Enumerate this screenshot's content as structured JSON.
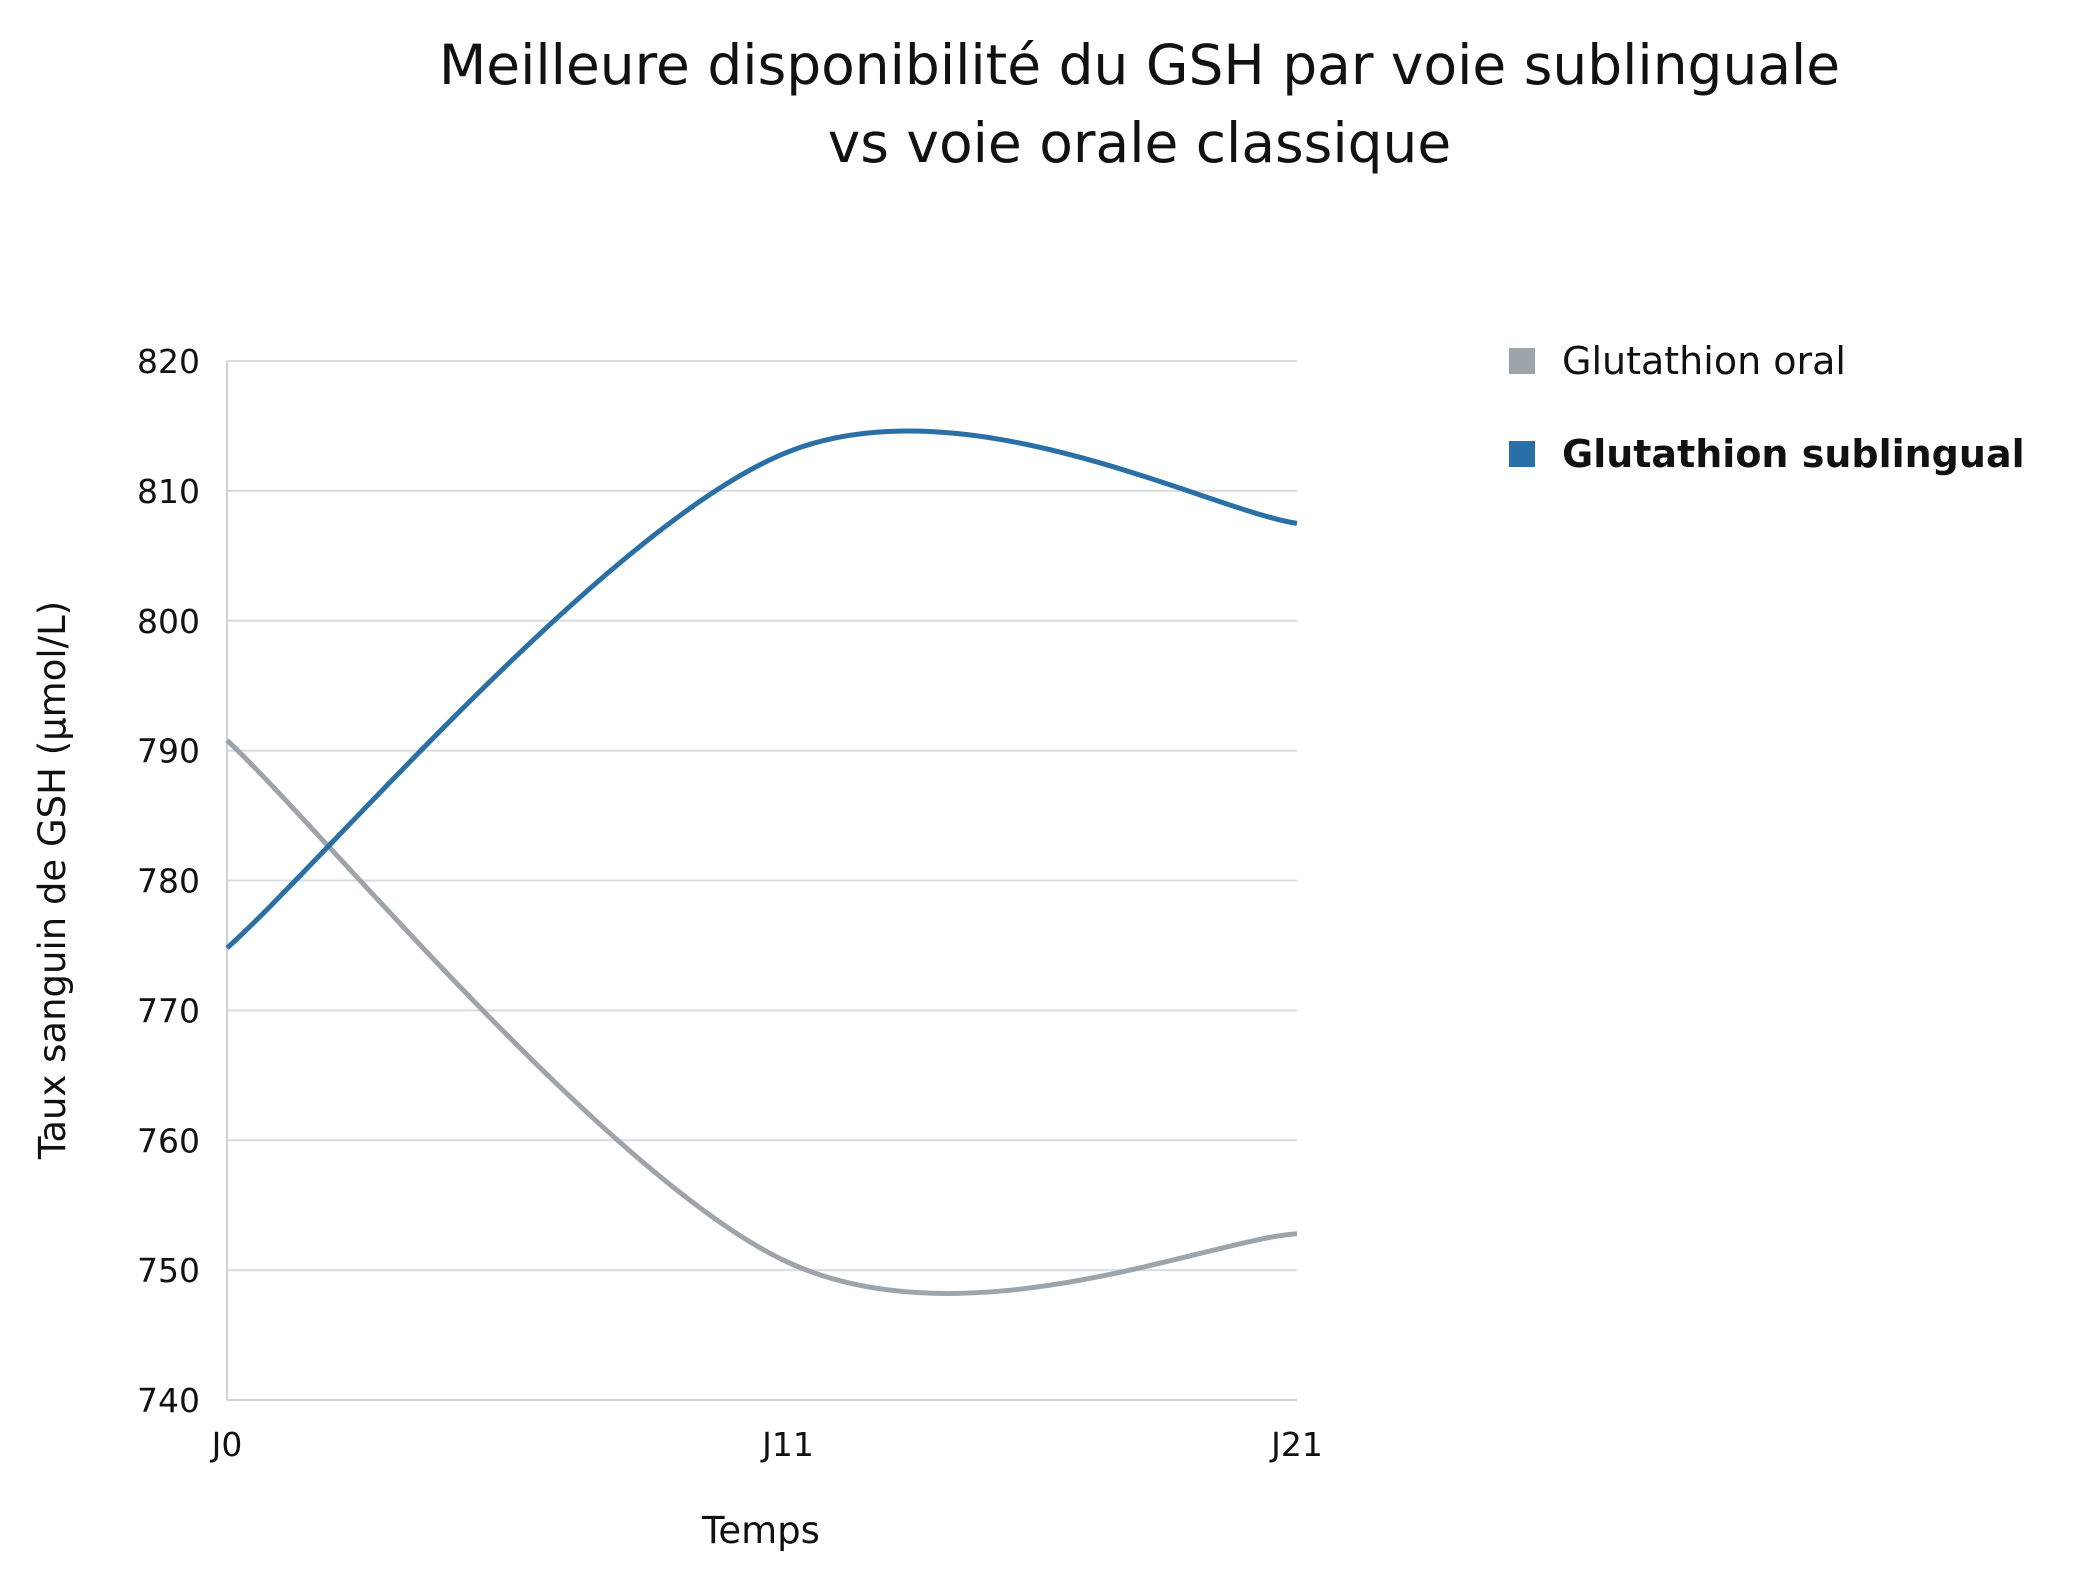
{
  "chart_data": {
    "type": "line",
    "title_line1": "Meilleure disponibilité du GSH par voie sublinguale",
    "title_line2": "vs voie orale classique",
    "xlabel": "Temps",
    "ylabel": "Taux sanguin de GSH (µmol/L)",
    "categories": [
      "J0",
      "J11",
      "J21"
    ],
    "ylim": [
      740,
      820
    ],
    "yticks": [
      "740",
      "750",
      "760",
      "770",
      "780",
      "790",
      "800",
      "810",
      "820"
    ],
    "grid": true,
    "legend_position": "right",
    "series": [
      {
        "name": "Glutathion oral",
        "values": [
          790.8,
          750.6,
          752.8
        ],
        "color": "#9da5ab",
        "bold": false
      },
      {
        "name": "Glutathion sublingual",
        "values": [
          774.8,
          813.0,
          807.5
        ],
        "color": "#2a6fa5",
        "bold": true
      }
    ]
  }
}
